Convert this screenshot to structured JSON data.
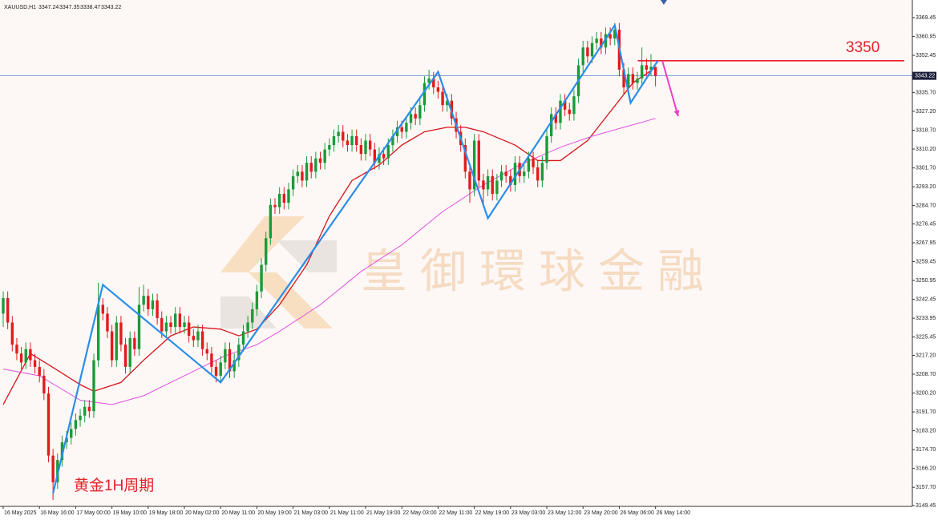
{
  "chart_data": {
    "type": "candlestick",
    "symbol": "XAUUSD,H1",
    "up_color": "#1b9a3a",
    "down_color": "#e31a1c",
    "open": [
      3236,
      3243,
      3232,
      3222,
      3218,
      3214,
      3220,
      3215,
      3212,
      3208,
      3200,
      3172,
      3160,
      3170,
      3178,
      3180,
      3184,
      3188,
      3190,
      3194,
      3192,
      3215,
      3240,
      3236,
      3228,
      3215,
      3232,
      3222,
      3212,
      3225,
      3220,
      3240,
      3244,
      3238,
      3242,
      3234,
      3228,
      3232,
      3230,
      3236,
      3230,
      3232,
      3226,
      3224,
      3228,
      3220,
      3218,
      3212,
      3208,
      3214,
      3220,
      3210,
      3215,
      3222,
      3228,
      3232,
      3238,
      3246,
      3258,
      3270,
      3285,
      3284,
      3290,
      3286,
      3292,
      3298,
      3300,
      3296,
      3304,
      3300,
      3306,
      3304,
      3310,
      3312,
      3316,
      3318,
      3314,
      3312,
      3316,
      3312,
      3308,
      3314,
      3310,
      3304,
      3308,
      3306,
      3312,
      3316,
      3320,
      3318,
      3322,
      3326,
      3324,
      3330,
      3340,
      3342,
      3338,
      3336,
      3330,
      3332,
      3324,
      3318,
      3312,
      3300,
      3292,
      3314,
      3296,
      3292,
      3298,
      3290,
      3296,
      3300,
      3298,
      3294,
      3304,
      3298,
      3300,
      3306,
      3302,
      3296,
      3304,
      3316,
      3326,
      3322,
      3332,
      3328,
      3326,
      3334,
      3348,
      3356,
      3352,
      3358,
      3360,
      3356,
      3362,
      3360,
      3364,
      3346,
      3338,
      3344,
      3340,
      3342,
      3348,
      3346,
      3347.24
    ],
    "high": [
      3246,
      3246,
      3235,
      3225,
      3221,
      3223,
      3223,
      3218,
      3215,
      3211,
      3203,
      3175,
      3173,
      3181,
      3183,
      3187,
      3191,
      3193,
      3197,
      3197,
      3218,
      3250,
      3243,
      3239,
      3231,
      3235,
      3235,
      3225,
      3228,
      3228,
      3248,
      3249,
      3247,
      3245,
      3245,
      3237,
      3235,
      3235,
      3239,
      3239,
      3235,
      3235,
      3229,
      3231,
      3231,
      3223,
      3221,
      3215,
      3217,
      3223,
      3223,
      3218,
      3225,
      3231,
      3235,
      3241,
      3249,
      3261,
      3273,
      3288,
      3288,
      3293,
      3293,
      3295,
      3301,
      3303,
      3303,
      3307,
      3307,
      3309,
      3309,
      3313,
      3315,
      3319,
      3321,
      3321,
      3317,
      3319,
      3319,
      3315,
      3317,
      3317,
      3313,
      3311,
      3311,
      3315,
      3319,
      3323,
      3323,
      3325,
      3329,
      3329,
      3333,
      3343,
      3346,
      3345,
      3341,
      3339,
      3335,
      3335,
      3327,
      3321,
      3315,
      3303,
      3317,
      3317,
      3299,
      3301,
      3301,
      3299,
      3303,
      3303,
      3301,
      3307,
      3307,
      3303,
      3309,
      3309,
      3305,
      3307,
      3319,
      3329,
      3329,
      3335,
      3335,
      3331,
      3337,
      3351,
      3359,
      3359,
      3361,
      3363,
      3363,
      3365,
      3365,
      3367,
      3367,
      3349,
      3347,
      3347,
      3345,
      3356,
      3351,
      3353,
      3347.35
    ],
    "low": [
      3230,
      3229,
      3219,
      3215,
      3211,
      3211,
      3212,
      3209,
      3205,
      3197,
      3169,
      3152,
      3157,
      3167,
      3175,
      3177,
      3181,
      3185,
      3187,
      3189,
      3189,
      3212,
      3233,
      3225,
      3212,
      3212,
      3219,
      3209,
      3209,
      3217,
      3217,
      3237,
      3235,
      3235,
      3231,
      3225,
      3225,
      3227,
      3227,
      3227,
      3227,
      3223,
      3221,
      3221,
      3217,
      3215,
      3209,
      3205,
      3205,
      3211,
      3207,
      3207,
      3212,
      3219,
      3225,
      3229,
      3235,
      3243,
      3255,
      3267,
      3281,
      3281,
      3283,
      3283,
      3289,
      3295,
      3293,
      3293,
      3297,
      3297,
      3301,
      3301,
      3307,
      3309,
      3313,
      3311,
      3309,
      3309,
      3309,
      3305,
      3305,
      3307,
      3301,
      3301,
      3303,
      3303,
      3309,
      3313,
      3315,
      3315,
      3319,
      3321,
      3321,
      3327,
      3337,
      3335,
      3333,
      3327,
      3327,
      3321,
      3315,
      3309,
      3297,
      3286,
      3289,
      3293,
      3284,
      3289,
      3287,
      3287,
      3293,
      3295,
      3291,
      3291,
      3295,
      3295,
      3297,
      3299,
      3293,
      3293,
      3301,
      3313,
      3319,
      3319,
      3325,
      3323,
      3323,
      3331,
      3345,
      3349,
      3349,
      3355,
      3353,
      3353,
      3357,
      3357,
      3343,
      3335,
      3335,
      3337,
      3337,
      3339,
      3343,
      3343,
      3338.47
    ],
    "close": [
      3243,
      3232,
      3222,
      3218,
      3214,
      3220,
      3215,
      3212,
      3208,
      3200,
      3172,
      3160,
      3170,
      3178,
      3180,
      3184,
      3188,
      3190,
      3194,
      3192,
      3215,
      3240,
      3236,
      3228,
      3215,
      3232,
      3222,
      3212,
      3225,
      3220,
      3240,
      3244,
      3238,
      3242,
      3234,
      3228,
      3232,
      3230,
      3236,
      3230,
      3232,
      3226,
      3224,
      3228,
      3220,
      3218,
      3212,
      3208,
      3214,
      3220,
      3210,
      3215,
      3222,
      3228,
      3232,
      3238,
      3246,
      3258,
      3270,
      3285,
      3284,
      3290,
      3286,
      3292,
      3298,
      3300,
      3296,
      3304,
      3300,
      3306,
      3304,
      3310,
      3312,
      3316,
      3318,
      3314,
      3312,
      3316,
      3312,
      3308,
      3314,
      3310,
      3304,
      3308,
      3306,
      3312,
      3316,
      3320,
      3318,
      3322,
      3326,
      3324,
      3330,
      3340,
      3342,
      3338,
      3336,
      3330,
      3332,
      3324,
      3318,
      3312,
      3300,
      3292,
      3314,
      3296,
      3292,
      3298,
      3290,
      3296,
      3300,
      3298,
      3294,
      3304,
      3298,
      3300,
      3306,
      3302,
      3296,
      3304,
      3316,
      3326,
      3322,
      3332,
      3328,
      3326,
      3334,
      3348,
      3356,
      3352,
      3358,
      3360,
      3356,
      3362,
      3360,
      3364,
      3346,
      3338,
      3344,
      3340,
      3342,
      3348,
      3346,
      3347.24,
      3343.22
    ],
    "xlim": [
      -0.708,
      200.7
    ],
    "ylim": [
      3149.1,
      3377.4
    ],
    "xticks": [
      {
        "value": 0,
        "label": "16 May 2025"
      },
      {
        "value": 8,
        "label": "16 May 16:00"
      },
      {
        "value": 16,
        "label": "17 May 00:00"
      },
      {
        "value": 24,
        "label": "19 May 10:00"
      },
      {
        "value": 32,
        "label": "19 May 18:00"
      },
      {
        "value": 40,
        "label": "20 May 02:00"
      },
      {
        "value": 48,
        "label": "20 May 11:00"
      },
      {
        "value": 56,
        "label": "20 May 19:00"
      },
      {
        "value": 64,
        "label": "21 May 03:00"
      },
      {
        "value": 72,
        "label": "21 May 11:00"
      },
      {
        "value": 80,
        "label": "21 May 19:00"
      },
      {
        "value": 88,
        "label": "22 May 03:00"
      },
      {
        "value": 96,
        "label": "22 May 11:00"
      },
      {
        "value": 104,
        "label": "22 May 19:00"
      },
      {
        "value": 112,
        "label": "23 May 03:00"
      },
      {
        "value": 120,
        "label": "23 May 12:00"
      },
      {
        "value": 128,
        "label": "23 May 20:00"
      },
      {
        "value": 136,
        "label": "26 May 06:00"
      },
      {
        "value": 144,
        "label": "26 May 14:00"
      }
    ],
    "yticks": [
      {
        "value": 3369.45,
        "label": "3369.45"
      },
      {
        "value": 3360.95,
        "label": "3360.95"
      },
      {
        "value": 3352.45,
        "label": "3352.45"
      },
      {
        "value": 3335.7,
        "label": "3335.70"
      },
      {
        "value": 3327.2,
        "label": "3327.20"
      },
      {
        "value": 3318.7,
        "label": "3318.70"
      },
      {
        "value": 3310.2,
        "label": "3310.20"
      },
      {
        "value": 3301.7,
        "label": "3301.70"
      },
      {
        "value": 3293.2,
        "label": "3293.20"
      },
      {
        "value": 3284.7,
        "label": "3284.70"
      },
      {
        "value": 3276.45,
        "label": "3276.45"
      },
      {
        "value": 3267.95,
        "label": "3267.95"
      },
      {
        "value": 3259.45,
        "label": "3259.45"
      },
      {
        "value": 3250.95,
        "label": "3250.95"
      },
      {
        "value": 3242.45,
        "label": "3242.45"
      },
      {
        "value": 3233.95,
        "label": "3233.95"
      },
      {
        "value": 3225.45,
        "label": "3225.45"
      },
      {
        "value": 3217.2,
        "label": "3217.20"
      },
      {
        "value": 3208.7,
        "label": "3208.70"
      },
      {
        "value": 3200.2,
        "label": "3200.20"
      },
      {
        "value": 3191.7,
        "label": "3191.70"
      },
      {
        "value": 3183.2,
        "label": "3183.20"
      },
      {
        "value": 3174.7,
        "label": "3174.70"
      },
      {
        "value": 3166.2,
        "label": "3166.20"
      },
      {
        "value": 3157.7,
        "label": "3157.70"
      },
      {
        "value": 3149.45,
        "label": "3149.45"
      }
    ],
    "moving_averages": [
      {
        "color": "#d7141a",
        "x": [
          0,
          6,
          10,
          17,
          20,
          26,
          31,
          37,
          42,
          48,
          52,
          56,
          61,
          67,
          72,
          77,
          83,
          88,
          93,
          98,
          102,
          106,
          113,
          118,
          123,
          129,
          134,
          139,
          144
        ],
        "values": [
          3195,
          3218,
          3213,
          3204,
          3201,
          3205,
          3215,
          3226,
          3230,
          3229,
          3226,
          3229,
          3240,
          3258,
          3280,
          3296,
          3303,
          3312,
          3318,
          3320,
          3320,
          3318,
          3312,
          3305,
          3305,
          3314,
          3327,
          3340,
          3347
        ]
      },
      {
        "color": "#e050e0",
        "x": [
          0,
          8,
          17,
          24,
          31,
          40,
          49,
          56,
          61,
          70,
          79,
          88,
          97,
          106,
          114,
          123,
          130,
          137,
          144
        ],
        "values": [
          3211,
          3208,
          3197,
          3195,
          3199,
          3208,
          3217,
          3222,
          3228,
          3240,
          3255,
          3267,
          3282,
          3294,
          3303,
          3311,
          3316,
          3320,
          3324
        ]
      }
    ],
    "zigzag": {
      "color": "#2a8ee8",
      "x": [
        11,
        22,
        48,
        96,
        107,
        135,
        138.5,
        144.5
      ],
      "values": [
        3155,
        3249,
        3205,
        3345,
        3279,
        3366,
        3331,
        3350
      ]
    },
    "arrow": {
      "color": "#f03cc8",
      "x": [
        145.5,
        149
      ],
      "values": [
        3350,
        3325
      ]
    },
    "level": {
      "value": 3350,
      "color": "#e8202a"
    },
    "price_line_color": "#5a86c8",
    "annotation": "黄金1H周期",
    "watermark": "皇御環球金融"
  }
}
